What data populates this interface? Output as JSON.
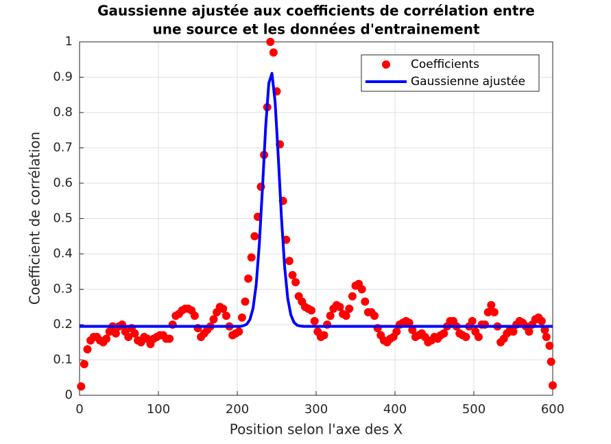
{
  "chart_data": {
    "type": "line",
    "title": [
      "Gaussienne ajustée aux coefficients de corrélation entre",
      "une source et les données d'entrainement"
    ],
    "x_label": "Position selon l'axe des X",
    "y_label": "Coefficient de corrélation",
    "xlim": [
      0,
      600
    ],
    "ylim": [
      0,
      1
    ],
    "xticks": [
      0,
      100,
      200,
      300,
      400,
      500,
      600
    ],
    "yticks": [
      0,
      0.1,
      0.2,
      0.3,
      0.4,
      0.5,
      0.6,
      0.7,
      0.8,
      0.9,
      1
    ],
    "grid": true,
    "legend": "upper-right",
    "series": [
      {
        "name": "Coefficients",
        "color": "#ff0000",
        "style": "markers",
        "x": [
          2,
          6,
          10,
          14,
          18,
          22,
          26,
          30,
          34,
          38,
          42,
          46,
          50,
          54,
          58,
          62,
          66,
          70,
          74,
          78,
          82,
          86,
          90,
          94,
          98,
          102,
          106,
          110,
          114,
          118,
          122,
          126,
          130,
          134,
          138,
          142,
          146,
          150,
          154,
          158,
          162,
          166,
          170,
          174,
          178,
          182,
          186,
          190,
          194,
          198,
          202,
          206,
          210,
          214,
          218,
          222,
          226,
          230,
          234,
          238,
          242,
          246,
          250,
          254,
          258,
          262,
          266,
          270,
          274,
          278,
          282,
          286,
          290,
          294,
          298,
          302,
          306,
          310,
          314,
          318,
          322,
          326,
          330,
          334,
          338,
          342,
          346,
          350,
          354,
          358,
          362,
          366,
          370,
          374,
          378,
          382,
          386,
          390,
          394,
          398,
          402,
          406,
          410,
          414,
          418,
          422,
          426,
          430,
          434,
          438,
          442,
          446,
          450,
          454,
          458,
          462,
          466,
          470,
          474,
          478,
          482,
          486,
          490,
          494,
          498,
          502,
          506,
          510,
          514,
          518,
          522,
          526,
          530,
          534,
          538,
          542,
          546,
          550,
          554,
          558,
          562,
          566,
          570,
          574,
          578,
          582,
          586,
          590,
          592,
          596,
          598,
          600
        ],
        "values": [
          0.025,
          0.088,
          0.13,
          0.155,
          0.165,
          0.165,
          0.155,
          0.15,
          0.16,
          0.18,
          0.195,
          0.175,
          0.195,
          0.2,
          0.18,
          0.165,
          0.19,
          0.175,
          0.155,
          0.15,
          0.165,
          0.16,
          0.145,
          0.16,
          0.165,
          0.17,
          0.17,
          0.16,
          0.16,
          0.2,
          0.225,
          0.23,
          0.24,
          0.245,
          0.245,
          0.24,
          0.225,
          0.19,
          0.165,
          0.175,
          0.185,
          0.195,
          0.215,
          0.235,
          0.25,
          0.245,
          0.225,
          0.195,
          0.17,
          0.175,
          0.18,
          0.22,
          0.265,
          0.33,
          0.39,
          0.45,
          0.505,
          0.59,
          0.68,
          0.815,
          1.0,
          0.97,
          0.86,
          0.71,
          0.55,
          0.44,
          0.38,
          0.34,
          0.32,
          0.28,
          0.265,
          0.25,
          0.245,
          0.24,
          0.21,
          0.18,
          0.165,
          0.17,
          0.2,
          0.225,
          0.245,
          0.255,
          0.25,
          0.23,
          0.225,
          0.245,
          0.28,
          0.31,
          0.315,
          0.3,
          0.265,
          0.235,
          0.235,
          0.225,
          0.19,
          0.17,
          0.155,
          0.15,
          0.16,
          0.165,
          0.18,
          0.2,
          0.205,
          0.21,
          0.205,
          0.185,
          0.165,
          0.17,
          0.175,
          0.165,
          0.15,
          0.155,
          0.165,
          0.16,
          0.17,
          0.175,
          0.195,
          0.21,
          0.21,
          0.195,
          0.175,
          0.17,
          0.165,
          0.195,
          0.21,
          0.18,
          0.165,
          0.2,
          0.2,
          0.235,
          0.255,
          0.235,
          0.195,
          0.15,
          0.16,
          0.175,
          0.185,
          0.18,
          0.2,
          0.21,
          0.205,
          0.195,
          0.18,
          0.2,
          0.215,
          0.22,
          0.21,
          0.185,
          0.165,
          0.14,
          0.095,
          0.028
        ]
      },
      {
        "name": "Gaussienne ajustée",
        "color": "#0000ff",
        "style": "line",
        "x": [
          0,
          200,
          204,
          208,
          212,
          216,
          220,
          224,
          228,
          232,
          236,
          240,
          244,
          248,
          252,
          256,
          260,
          264,
          268,
          272,
          276,
          280,
          284,
          600
        ],
        "values": [
          0.195,
          0.195,
          0.195,
          0.197,
          0.201,
          0.214,
          0.246,
          0.313,
          0.429,
          0.588,
          0.759,
          0.883,
          0.911,
          0.83,
          0.675,
          0.504,
          0.365,
          0.274,
          0.227,
          0.206,
          0.198,
          0.196,
          0.195,
          0.195
        ]
      }
    ]
  }
}
